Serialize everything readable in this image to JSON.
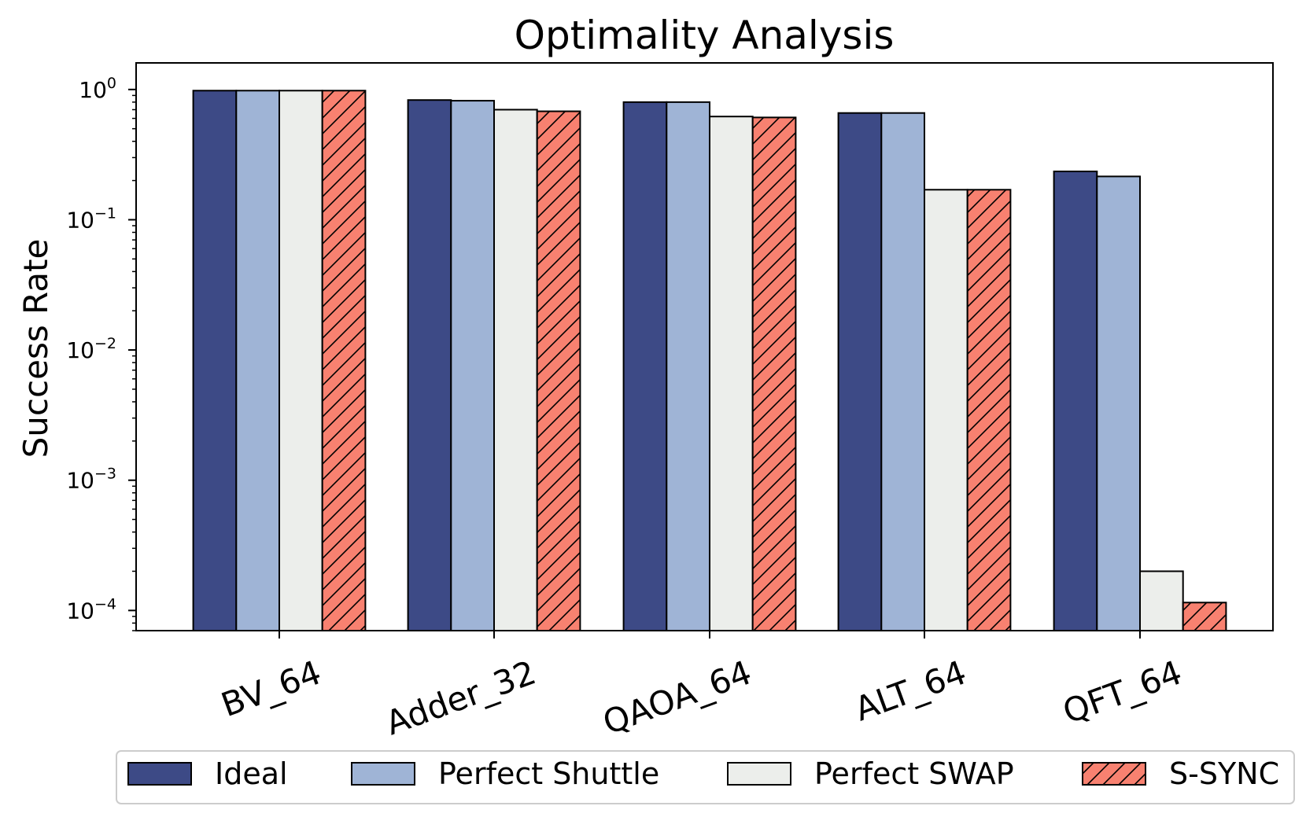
{
  "chart_data": {
    "type": "bar",
    "title": "Optimality Analysis",
    "xlabel": "",
    "ylabel": "Success Rate",
    "yscale": "log",
    "ylim": [
      7e-05,
      1.6
    ],
    "yticks": [
      {
        "value": 1,
        "base": "10",
        "exp": "0"
      },
      {
        "value": 0.1,
        "base": "10",
        "exp": "−1"
      },
      {
        "value": 0.01,
        "base": "10",
        "exp": "−2"
      },
      {
        "value": 0.001,
        "base": "10",
        "exp": "−3"
      },
      {
        "value": 0.0001,
        "base": "10",
        "exp": "−4"
      }
    ],
    "categories": [
      "BV_64",
      "Adder_32",
      "QAOA_64",
      "ALT_64",
      "QFT_64"
    ],
    "series": [
      {
        "name": "Ideal",
        "color": "#3d4a86",
        "hatch": false,
        "values": [
          0.98,
          0.83,
          0.8,
          0.66,
          0.235
        ]
      },
      {
        "name": "Perfect Shuttle",
        "color": "#9fb4d6",
        "hatch": false,
        "values": [
          0.98,
          0.82,
          0.8,
          0.66,
          0.215
        ]
      },
      {
        "name": "Perfect SWAP",
        "color": "#eceeeb",
        "hatch": false,
        "values": [
          0.98,
          0.7,
          0.62,
          0.17,
          0.0002
        ]
      },
      {
        "name": "S-SYNC",
        "color": "#f88170",
        "hatch": true,
        "values": [
          0.98,
          0.68,
          0.61,
          0.17,
          0.000115
        ]
      }
    ],
    "legend_position": "bottom"
  }
}
